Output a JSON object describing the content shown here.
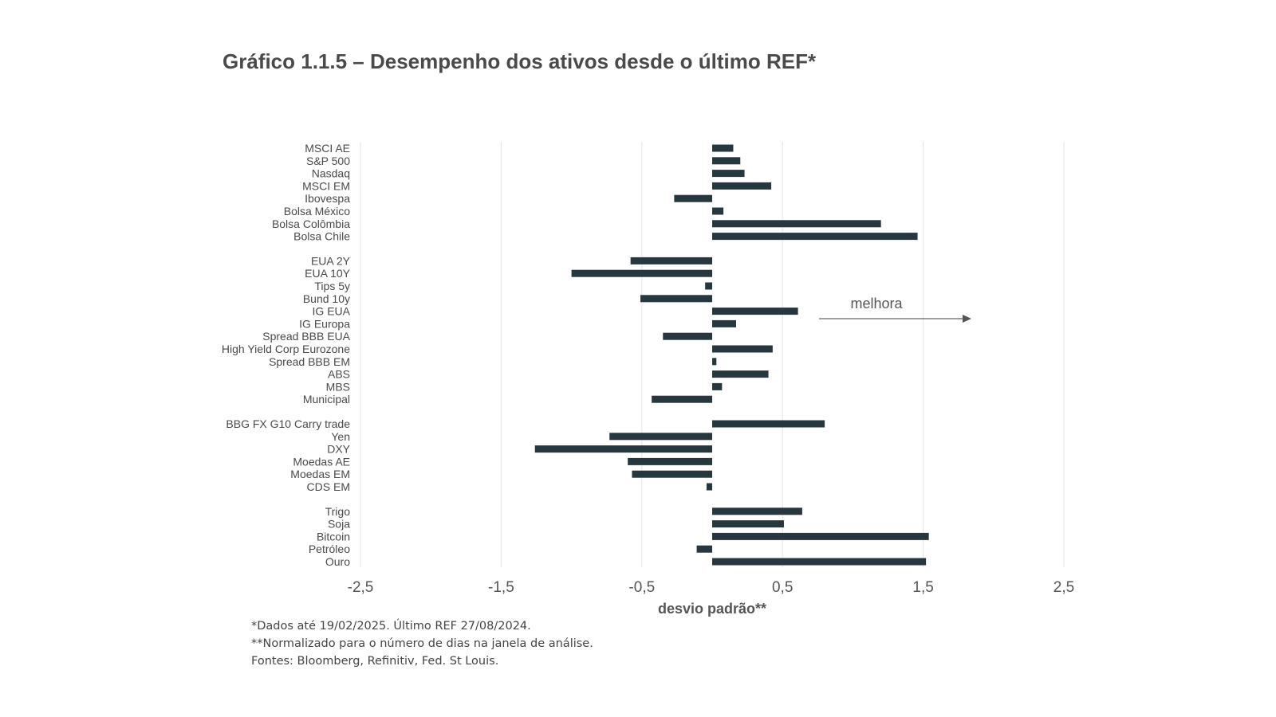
{
  "chart_data": {
    "type": "bar",
    "orientation": "horizontal",
    "title": "Gráfico 1.1.5 – Desempenho dos ativos desde o último REF*",
    "xlabel": "desvio padrão**",
    "xlim": [
      -2.5,
      2.5
    ],
    "xticks": [
      -2.5,
      -1.5,
      -0.5,
      0.5,
      1.5,
      2.5
    ],
    "xtick_labels": [
      "-2,5",
      "-1,5",
      "-0,5",
      "0,5",
      "1,5",
      "2,5"
    ],
    "grid": true,
    "bar_color": "#27373f",
    "annotation": "melhora",
    "groups": [
      {
        "categories": [
          "MSCI AE",
          "S&P 500",
          "Nasdaq",
          "MSCI EM",
          "Ibovespa",
          "Bolsa México",
          "Bolsa Colômbia",
          "Bolsa Chile"
        ],
        "values": [
          0.15,
          0.2,
          0.23,
          0.42,
          -0.27,
          0.08,
          1.2,
          1.46
        ]
      },
      {
        "categories": [
          "EUA 2Y",
          "EUA 10Y",
          "Tips 5y",
          "Bund 10y",
          "IG EUA",
          "IG Europa",
          "Spread BBB EUA",
          "High Yield Corp Eurozone",
          "Spread BBB EM",
          "ABS",
          "MBS",
          "Municipal"
        ],
        "values": [
          -0.58,
          -1.0,
          -0.05,
          -0.51,
          0.61,
          0.17,
          -0.35,
          0.43,
          0.03,
          0.4,
          0.07,
          -0.43
        ]
      },
      {
        "categories": [
          "BBG FX G10 Carry trade",
          "Yen",
          "DXY",
          "Moedas AE",
          "Moedas EM",
          "CDS EM"
        ],
        "values": [
          0.8,
          -0.73,
          -1.26,
          -0.6,
          -0.57,
          -0.04
        ]
      },
      {
        "categories": [
          "Trigo",
          "Soja",
          "Bitcoin",
          "Petróleo",
          "Ouro"
        ],
        "values": [
          0.64,
          0.51,
          1.54,
          -0.11,
          1.52
        ]
      }
    ]
  },
  "footnotes": {
    "line1": "*Dados até 19/02/2025. Último REF 27/08/2024.",
    "line2": "**Normalizado para o número de dias na janela de análise.",
    "line3": "Fontes: Bloomberg, Refinitiv, Fed. St Louis."
  }
}
